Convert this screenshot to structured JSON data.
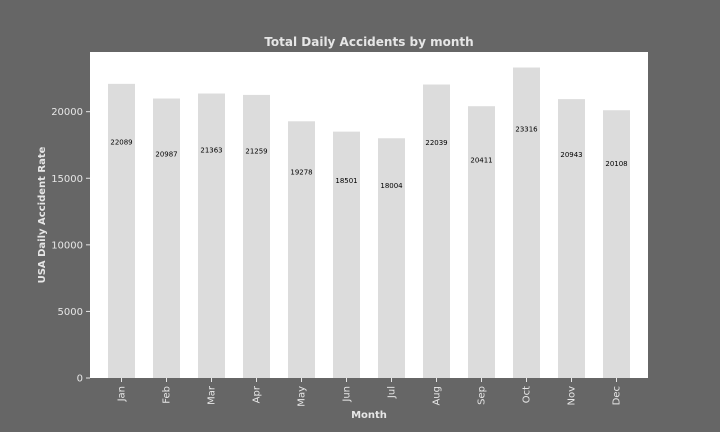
{
  "chart_data": {
    "type": "bar",
    "title": "Total Daily Accidents by month",
    "xlabel": "Month",
    "ylabel": "USA Daily Accident Rate",
    "categories": [
      "Jan",
      "Feb",
      "Mar",
      "Apr",
      "May",
      "Jun",
      "Jul",
      "Aug",
      "Sep",
      "Oct",
      "Nov",
      "Dec"
    ],
    "values": [
      22089,
      20987,
      21363,
      21259,
      19278,
      18501,
      18004,
      22039,
      20411,
      23316,
      20943,
      20108
    ],
    "data_labels": [
      "22089",
      "20987",
      "21363",
      "21259",
      "19278",
      "18501",
      "18004",
      "22039",
      "20411",
      "23316",
      "20943",
      "20108"
    ],
    "ylim": [
      0,
      24482
    ],
    "yticks": [
      0,
      5000,
      10000,
      15000,
      20000
    ],
    "ytick_labels": [
      "0",
      "5000",
      "10000",
      "15000",
      "20000"
    ],
    "grid": false,
    "colors": {
      "background": "#666666",
      "plot_area": "#ffffff",
      "bar": "#dcdcdc",
      "text": "#e6e6e6",
      "data_label": "#000000"
    }
  }
}
